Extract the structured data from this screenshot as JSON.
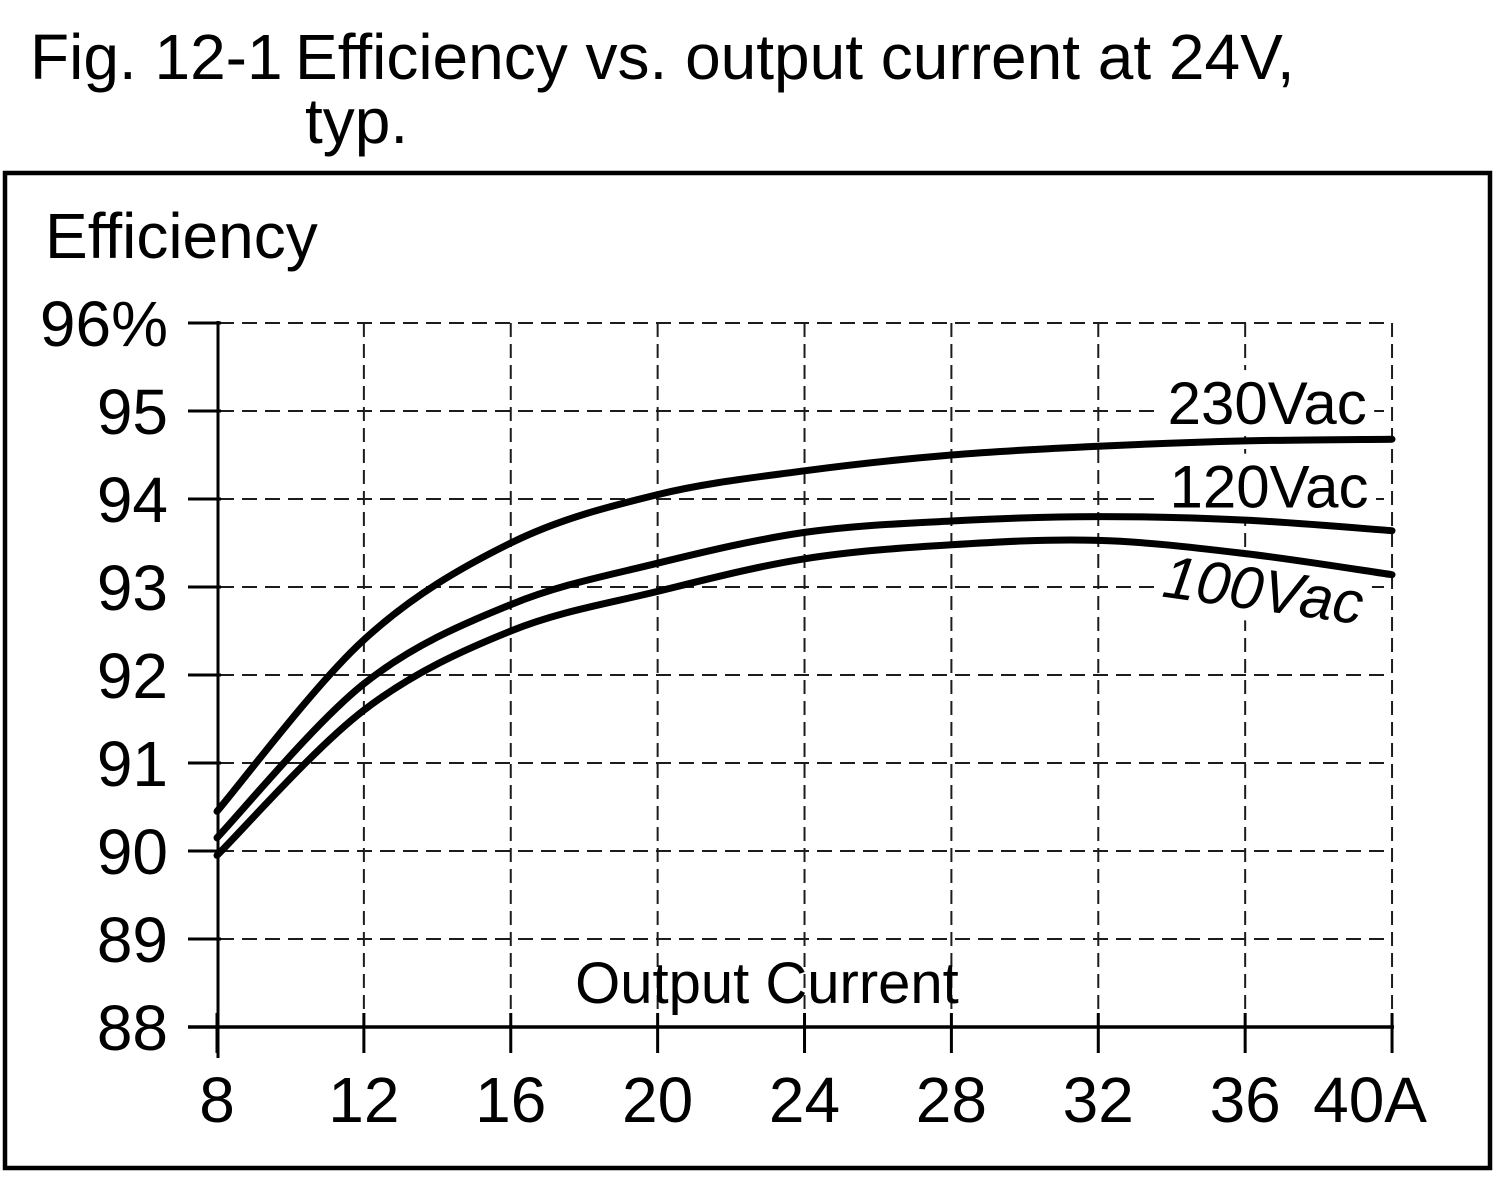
{
  "figure": {
    "number": "Fig. 12-1",
    "caption_line1": "Efficiency vs. output current at 24V,",
    "caption_line2": "typ."
  },
  "chart_data": {
    "type": "line",
    "title": "Efficiency vs. output current at 24V, typ.",
    "ylabel": "Efficiency",
    "xlabel": "Output Current",
    "y_unit": "%",
    "x_unit": "A",
    "xlim": [
      8,
      40
    ],
    "ylim": [
      88,
      96
    ],
    "grid": "dashed",
    "legend_position": "inline-right",
    "x": [
      8,
      12,
      16,
      20,
      24,
      28,
      32,
      36,
      40
    ],
    "x_tick_labels": [
      "8",
      "12",
      "16",
      "20",
      "24",
      "28",
      "32",
      "36",
      "40A"
    ],
    "y_ticks": [
      88,
      89,
      90,
      91,
      92,
      93,
      94,
      95,
      96
    ],
    "y_tick_labels": [
      "88",
      "89",
      "90",
      "91",
      "92",
      "93",
      "94",
      "95",
      "96%"
    ],
    "series": [
      {
        "name": "230Vac",
        "values": [
          90.45,
          92.4,
          93.5,
          94.05,
          94.32,
          94.5,
          94.6,
          94.66,
          94.68
        ],
        "label_anchor": {
          "x_a": 36.6,
          "y_pct": 95.09,
          "rotate_deg": 0,
          "italic": false
        }
      },
      {
        "name": "120Vac",
        "values": [
          90.15,
          91.9,
          92.8,
          93.27,
          93.62,
          93.75,
          93.8,
          93.76,
          93.64
        ],
        "label_anchor": {
          "x_a": 36.65,
          "y_pct": 94.14,
          "rotate_deg": 0,
          "italic": false
        }
      },
      {
        "name": "100Vac",
        "values": [
          89.95,
          91.6,
          92.5,
          92.95,
          93.32,
          93.48,
          93.53,
          93.38,
          93.14
        ],
        "label_anchor": {
          "x_a": 36.5,
          "y_pct": 92.97,
          "rotate_deg": 8,
          "italic": true
        }
      }
    ]
  },
  "colors": {
    "curve": "#000000",
    "grid": "#1c1c1c",
    "axis": "#000000",
    "frame": "#000000",
    "text": "#000000",
    "background": "#ffffff"
  }
}
